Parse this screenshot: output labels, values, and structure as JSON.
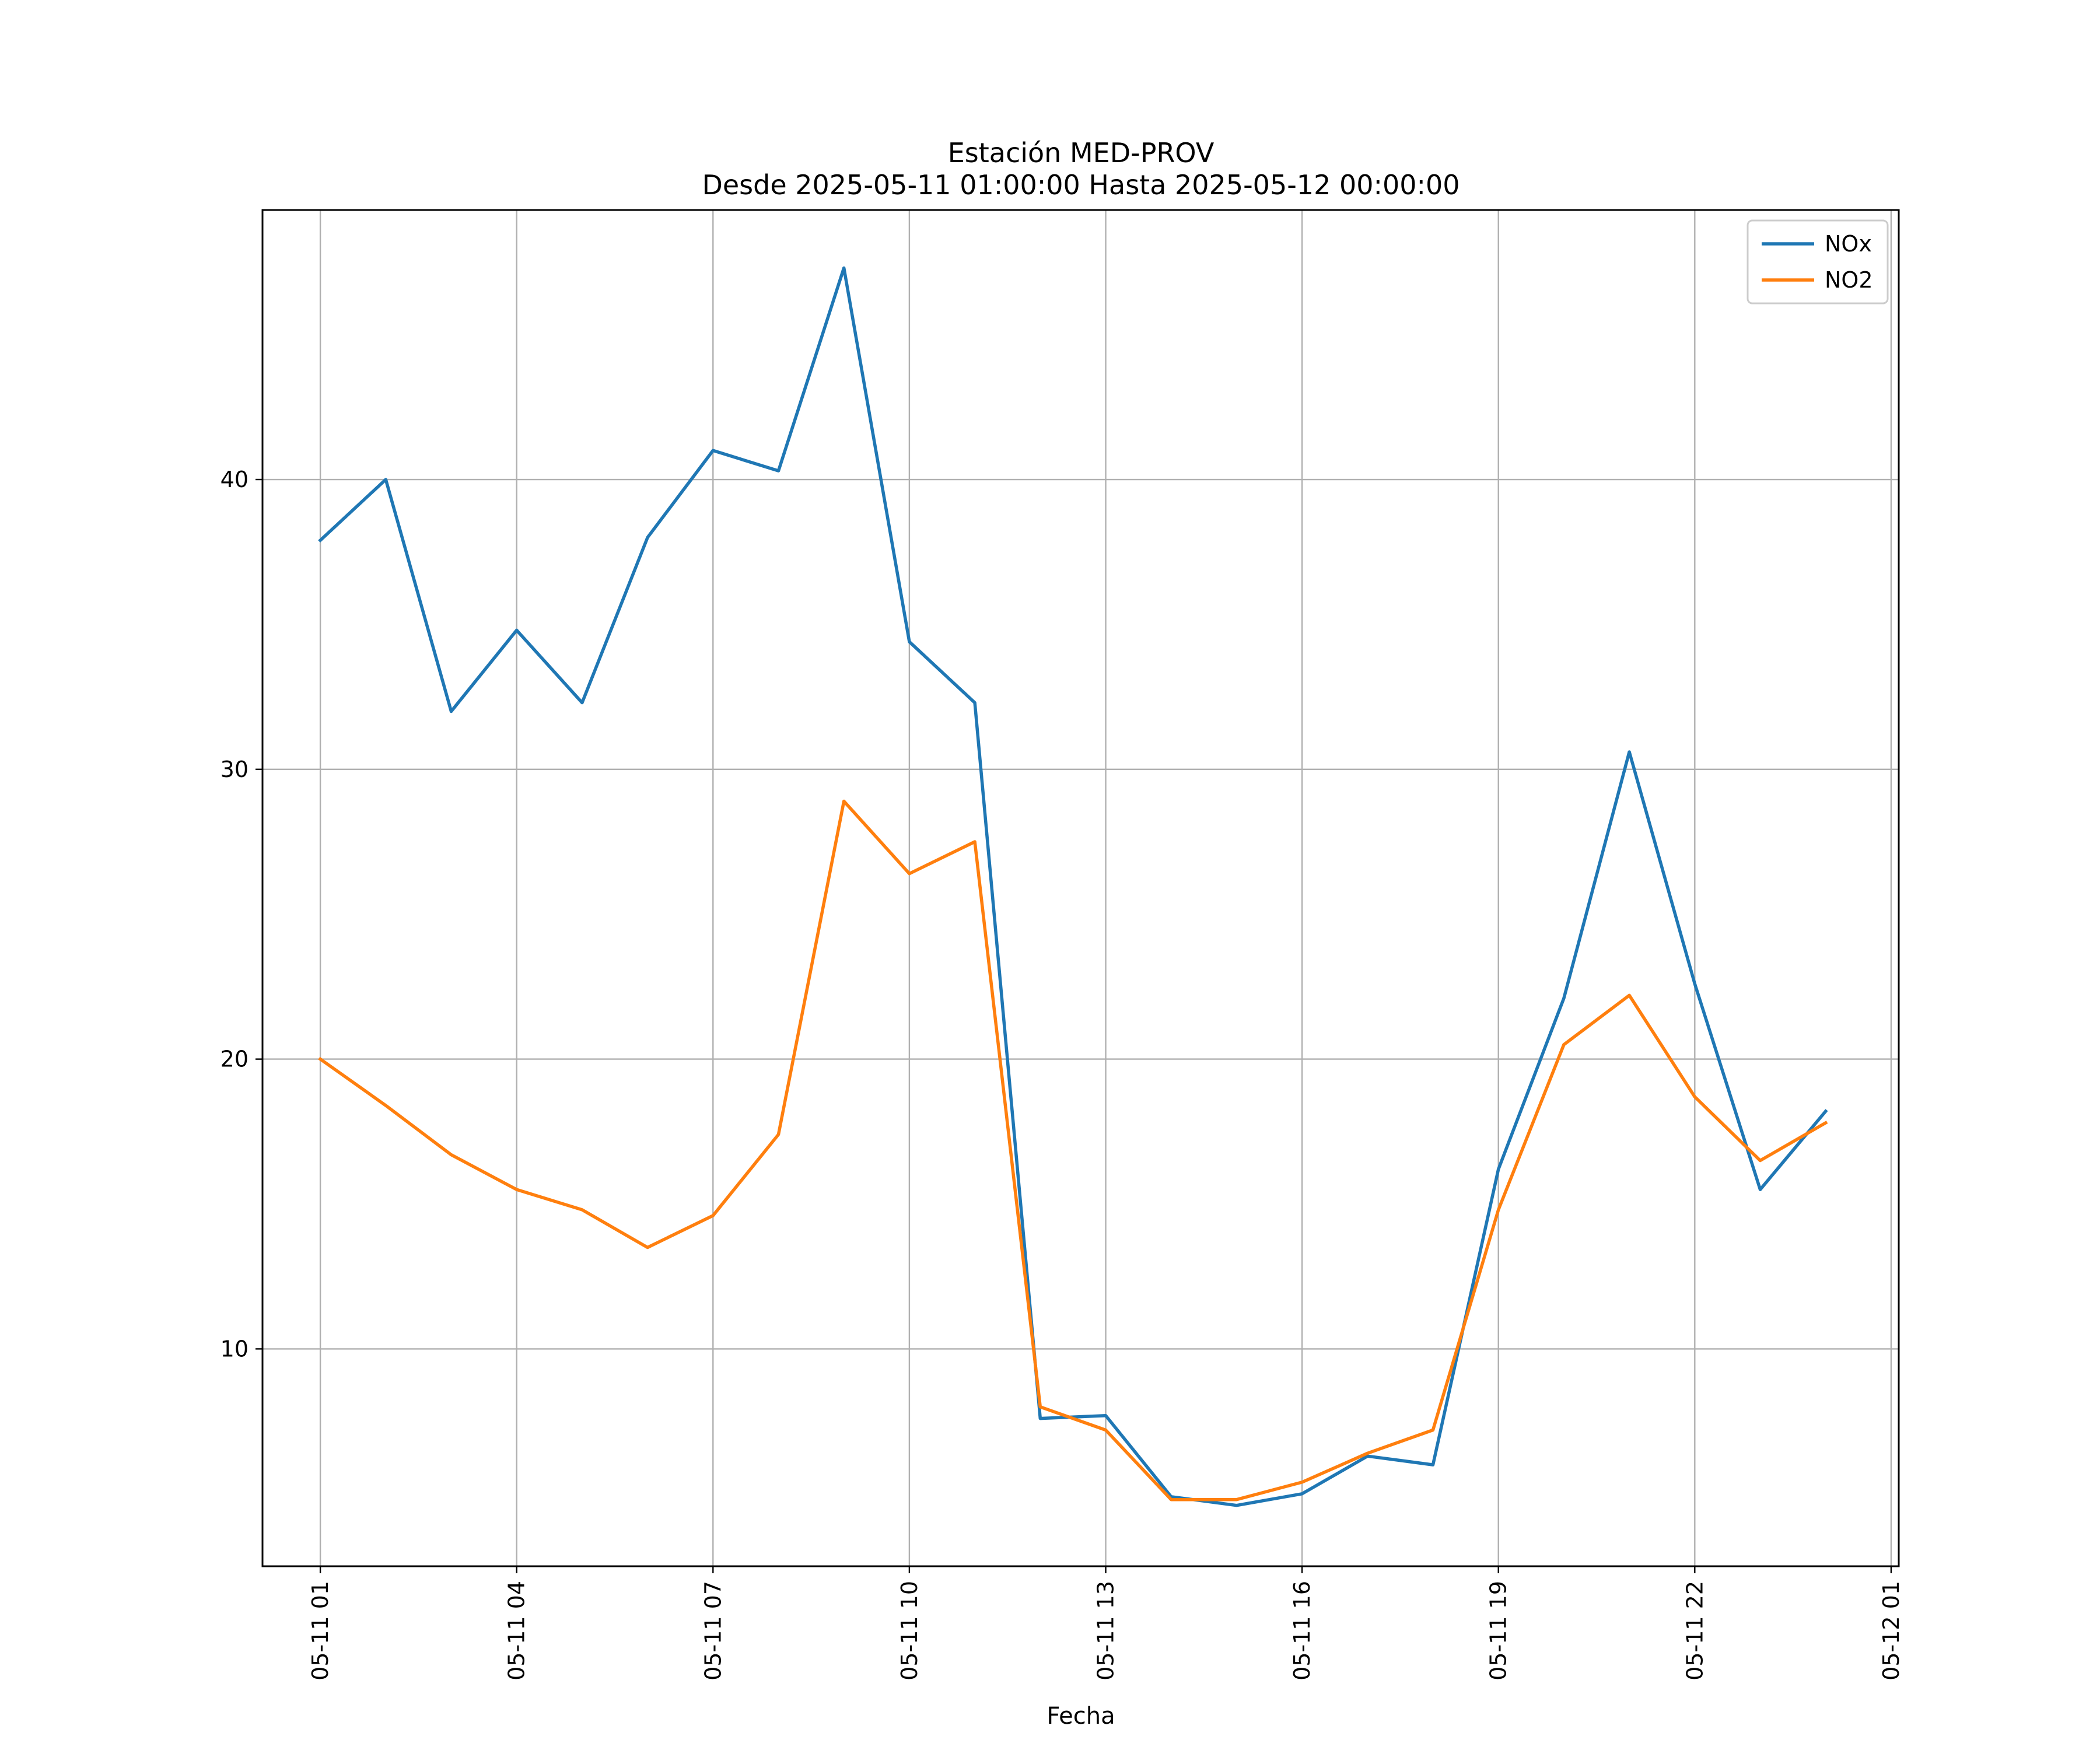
{
  "chart_data": {
    "type": "line",
    "title": "Estación MED-PROV",
    "subtitle": "Desde 2025-05-11 01:00:00 Hasta 2025-05-12 00:00:00",
    "xlabel": "Fecha",
    "ylabel": "",
    "grid": true,
    "legend_position": "top-right",
    "x": [
      "05-11 01",
      "05-11 02",
      "05-11 03",
      "05-11 04",
      "05-11 05",
      "05-11 06",
      "05-11 07",
      "05-11 08",
      "05-11 09",
      "05-11 10",
      "05-11 11",
      "05-11 12",
      "05-11 13",
      "05-11 14",
      "05-11 15",
      "05-11 16",
      "05-11 17",
      "05-11 18",
      "05-11 19",
      "05-11 20",
      "05-11 21",
      "05-11 22",
      "05-11 23",
      "05-12 00"
    ],
    "x_ticks": [
      "05-11 01",
      "05-11 04",
      "05-11 07",
      "05-11 10",
      "05-11 13",
      "05-11 16",
      "05-11 19",
      "05-11 22",
      "05-12 01"
    ],
    "y_ticks": [
      10,
      20,
      30,
      40
    ],
    "xlim": [
      "05-11 00:07",
      "05-12 01:07"
    ],
    "ylim": [
      2.5,
      49.3
    ],
    "series": [
      {
        "name": "NOx",
        "color": "#1f77b4",
        "values": [
          37.9,
          40.0,
          32.0,
          34.8,
          32.3,
          38.0,
          41.0,
          40.3,
          47.3,
          34.4,
          32.3,
          7.6,
          7.7,
          4.9,
          4.6,
          5.0,
          6.3,
          6.0,
          16.2,
          22.1,
          30.6,
          22.6,
          15.5,
          18.2
        ]
      },
      {
        "name": "NO2",
        "color": "#ff7f0e",
        "values": [
          20.0,
          18.4,
          16.7,
          15.5,
          14.8,
          13.5,
          14.6,
          17.4,
          28.9,
          26.4,
          27.5,
          8.0,
          7.2,
          4.8,
          4.8,
          5.4,
          6.4,
          7.2,
          14.8,
          20.5,
          22.2,
          18.7,
          16.5,
          17.8
        ]
      }
    ]
  }
}
